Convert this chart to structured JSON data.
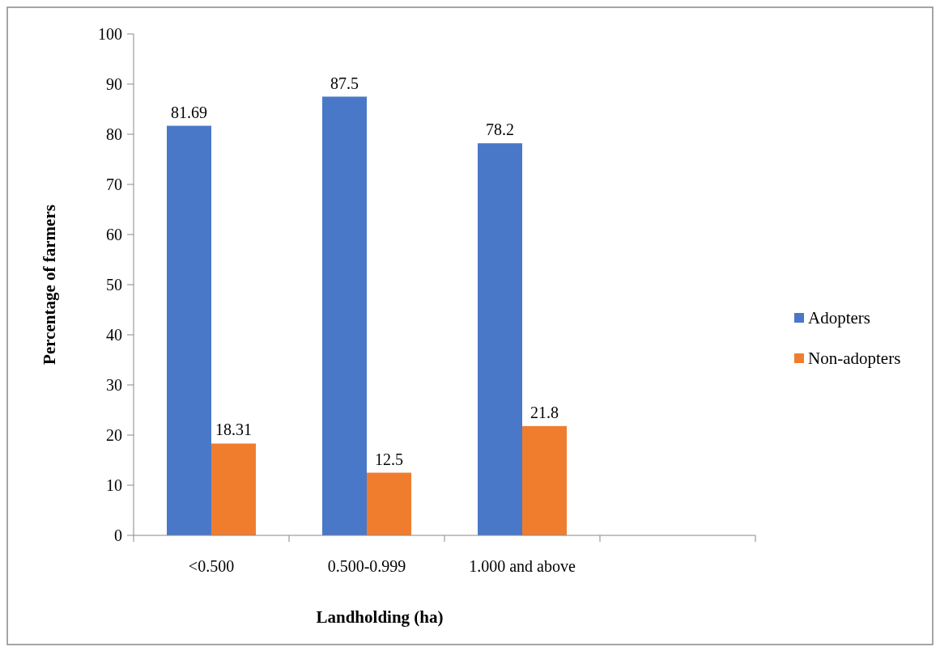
{
  "chart_data": {
    "type": "bar",
    "xlabel": "Landholding (ha)",
    "ylabel": "Percentage of farmers",
    "categories": [
      "<0.500",
      "0.500-0.999",
      "1.000 and above",
      null
    ],
    "series": [
      {
        "name": "Adopters",
        "color": "#4a78c8",
        "values": [
          81.69,
          87.5,
          78.2,
          null
        ]
      },
      {
        "name": "Non-adopters",
        "color": "#f07d2e",
        "values": [
          18.31,
          12.5,
          21.8,
          null
        ]
      }
    ],
    "ylim": [
      0,
      100
    ],
    "yticks": [
      0,
      10,
      20,
      30,
      40,
      50,
      60,
      70,
      80,
      90,
      100
    ],
    "grid": false,
    "legend": "right",
    "data_labels": true
  }
}
